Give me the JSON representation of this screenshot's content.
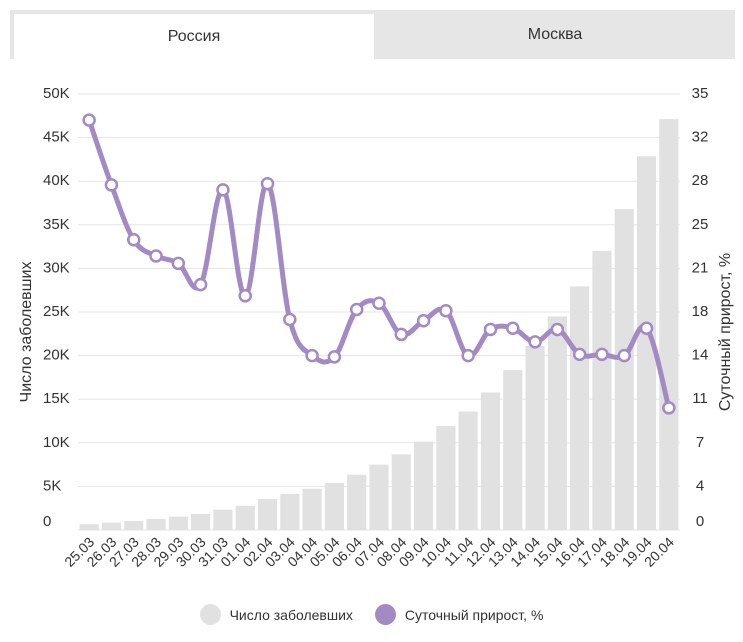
{
  "tabs": [
    {
      "label": "Россия",
      "active": true
    },
    {
      "label": "Москва",
      "active": false
    }
  ],
  "colors": {
    "bars": "#e1e1e1",
    "line": "#a48ac3",
    "grid": "#e5e5e5",
    "text": "#333333"
  },
  "chart_data": {
    "type": "bar",
    "categories": [
      "25.03",
      "26.03",
      "27.03",
      "28.03",
      "29.03",
      "30.03",
      "31.03",
      "01.04",
      "02.04",
      "03.04",
      "04.04",
      "05.04",
      "06.04",
      "07.04",
      "08.04",
      "09.04",
      "10.04",
      "11.04",
      "12.04",
      "13.04",
      "14.04",
      "15.04",
      "16.04",
      "17.04",
      "18.04",
      "19.04",
      "20.04"
    ],
    "series": [
      {
        "name": "Число заболевших",
        "type": "bar",
        "axis": "left",
        "values": [
          658,
          840,
          1036,
          1264,
          1534,
          1836,
          2337,
          2777,
          3548,
          4149,
          4731,
          5389,
          6343,
          7497,
          8672,
          10131,
          11917,
          13584,
          15770,
          18328,
          21102,
          24490,
          27938,
          32008,
          36793,
          42853,
          47121
        ]
      },
      {
        "name": "Суточный прирост, %",
        "type": "line",
        "axis": "right",
        "values": [
          32.9,
          27.7,
          23.3,
          22.0,
          21.4,
          19.7,
          27.3,
          18.8,
          27.8,
          16.9,
          14.0,
          13.9,
          17.7,
          18.2,
          15.7,
          16.8,
          17.6,
          14.0,
          16.1,
          16.2,
          15.1,
          16.1,
          14.1,
          14.1,
          14.0,
          16.2,
          9.8
        ]
      }
    ],
    "title": "",
    "xlabel": "",
    "ylabel": "Число заболевших",
    "ylabel_right": "Суточный прирост, %",
    "ylim": [
      0,
      50000
    ],
    "ylim_right": [
      0,
      35
    ],
    "yticks": [
      "0",
      "5K",
      "10K",
      "15K",
      "20K",
      "25K",
      "30K",
      "35K",
      "40K",
      "45K",
      "50K"
    ],
    "yticks_right": [
      "0",
      "4",
      "7",
      "11",
      "14",
      "18",
      "21",
      "25",
      "28",
      "32",
      "35"
    ],
    "grid": true,
    "legend": "bottom"
  },
  "legend": [
    {
      "label": "Число заболевших"
    },
    {
      "label": "Суточный прирост, %"
    }
  ]
}
